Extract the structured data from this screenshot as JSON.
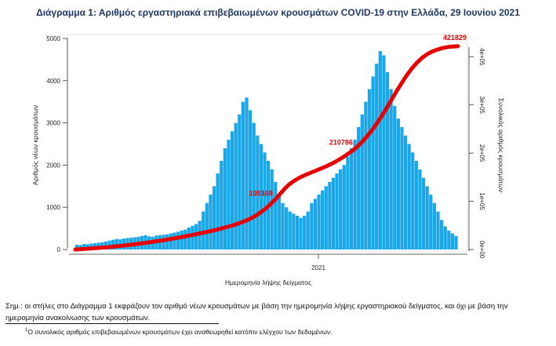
{
  "title": "Διάγραμμα 1: Αριθμός εργαστηριακά επιβεβαιωμένων κρουσμάτων COVID-19 στην Ελλάδα, 29 Ιουνίου 2021",
  "note": "Σημ.: οι στήλες στο Διάγραμμα 1 εκφράζουν τον αριθμό νέων κρουσμάτων με βάση την ημερομηνία λήψης εργαστηριακού δείγματος, και όχι με βάση την ημερομηνία ανακοίνωσης των κρουσμάτων.",
  "footnote": {
    "marker": "1",
    "text": "Ο συνολικός αριθμός επιβεβαιωμένων κρουσμάτων έχει αναθεωρηθεί κατόπιν ελέγχου των δεδομένων."
  },
  "colors": {
    "bars": "#1aa7e8",
    "cumulative_line": "#e60000",
    "title": "#1f3864"
  },
  "chart_data": {
    "type": "bar",
    "xlabel": "Ημερομηνία λήψης δείγματος",
    "ylabel": "Αριθμός νέων κρουσμάτων",
    "ylabel_right": "Συνολικός αριθμός κρουσμάτων",
    "ylim": [
      0,
      5000
    ],
    "ylim_right": [
      0,
      440000
    ],
    "yticks": [
      "0",
      "1000",
      "2000",
      "3000",
      "4000",
      "5000"
    ],
    "yticks_right": [
      "0e+00",
      "1e+05",
      "2e+05",
      "3e+05",
      "4e+05"
    ],
    "x_tick_label": "2021",
    "grid": false,
    "series": [
      {
        "chart_type": "bar",
        "daily_cases": [
          110,
          105,
          130,
          125,
          140,
          150,
          160,
          170,
          190,
          210,
          230,
          250,
          240,
          260,
          270,
          280,
          290,
          300,
          320,
          340,
          310,
          300,
          330,
          340,
          350,
          360,
          380,
          400,
          420,
          450,
          470,
          520,
          560,
          600,
          680,
          900,
          1100,
          1300,
          1500,
          1800,
          2100,
          2400,
          2600,
          2800,
          3000,
          3200,
          3500,
          3600,
          3300,
          3000,
          2700,
          2500,
          2300,
          2100,
          1900,
          1600,
          1300,
          1100,
          1000,
          900,
          850,
          800,
          750,
          800,
          900,
          1100,
          1200,
          1300,
          1400,
          1500,
          1600,
          1700,
          1800,
          1900,
          2000,
          2200,
          2400,
          2600,
          2900,
          3200,
          3500,
          3800,
          4100,
          4400,
          4700,
          4600,
          4200,
          3800,
          3400,
          3100,
          2900,
          2700,
          2500,
          2300,
          2100,
          1900,
          1700,
          1500,
          1300,
          1100,
          900,
          700,
          550,
          450,
          380,
          320
        ]
      },
      {
        "chart_type": "line",
        "cumulative_cases": [
          0,
          700,
          1400,
          2100,
          2900,
          3700,
          4500,
          5500,
          6500,
          7600,
          8800,
          10000,
          11400,
          12800,
          14200,
          15700,
          17200,
          18800,
          20500,
          22300,
          24200,
          26100,
          28100,
          30200,
          32400,
          34600,
          36900,
          39300,
          41800,
          44500,
          47400,
          50500,
          54000,
          57900,
          62400,
          67800,
          74400,
          82200,
          91300,
          101800,
          113500,
          125800,
          135800,
          143300,
          149300,
          154300,
          158800,
          163000,
          167300,
          171800,
          176700,
          182200,
          188400,
          195200,
          202700,
          210800,
          221000,
          232500,
          245500,
          260000,
          276000,
          293000,
          311000,
          329000,
          346000,
          362000,
          376000,
          388000,
          398000,
          405500,
          411000,
          415000,
          418000,
          420200,
          421200,
          421829
        ]
      }
    ],
    "annotations": [
      {
        "label": "105169",
        "value": 105169
      },
      {
        "label": "210786",
        "value": 210786
      },
      {
        "label": "421829",
        "value": 421829
      }
    ]
  }
}
